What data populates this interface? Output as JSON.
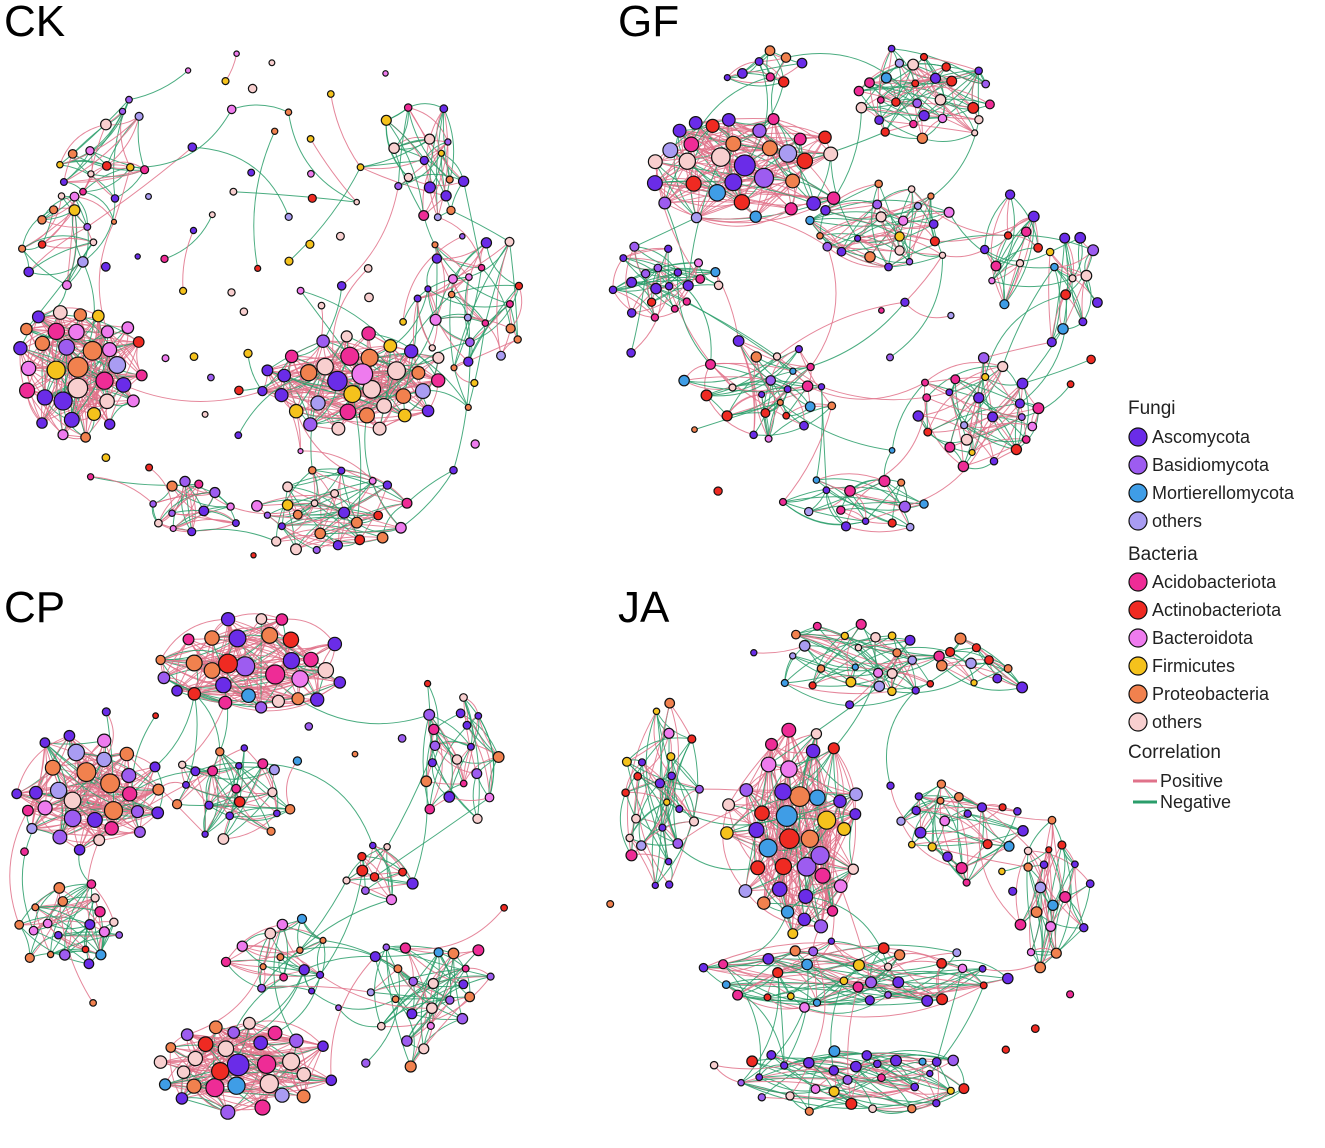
{
  "panels": [
    {
      "id": "CK",
      "label": "CK"
    },
    {
      "id": "GF",
      "label": "GF"
    },
    {
      "id": "CP",
      "label": "CP"
    },
    {
      "id": "JA",
      "label": "JA"
    }
  ],
  "legend": {
    "fungi_title": "Fungi",
    "fungi": [
      {
        "name": "Ascomycota",
        "color": "#6a2ce8"
      },
      {
        "name": "Basidiomycota",
        "color": "#9d5cf0"
      },
      {
        "name": "Mortierellomycota",
        "color": "#3f9de6"
      },
      {
        "name": "others",
        "color": "#a99cf2"
      }
    ],
    "bacteria_title": "Bacteria",
    "bacteria": [
      {
        "name": "Acidobacteriota",
        "color": "#ee2c96"
      },
      {
        "name": "Actinobacteriota",
        "color": "#ef2a22"
      },
      {
        "name": "Bacteroidota",
        "color": "#ee7bee"
      },
      {
        "name": "Firmicutes",
        "color": "#f5c21c"
      },
      {
        "name": "Proteobacteria",
        "color": "#f1814e"
      },
      {
        "name": "others",
        "color": "#f8cfcf"
      }
    ],
    "correlation_title": "Correlation",
    "correlation": [
      {
        "name": "Positive",
        "color": "#e0728a"
      },
      {
        "name": "Negative",
        "color": "#2a9d6a"
      }
    ]
  }
}
